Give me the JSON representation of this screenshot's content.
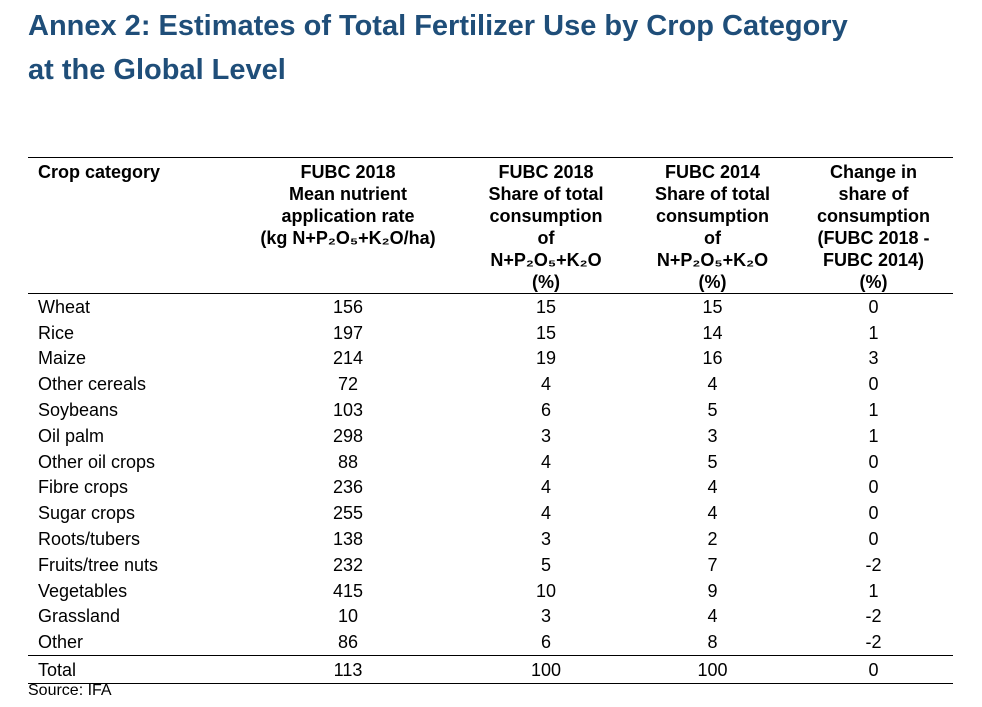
{
  "title": {
    "line1": "Annex 2: Estimates of Total Fertilizer Use by Crop Category",
    "line2": "at the Global Level"
  },
  "header": {
    "crop": "Crop category",
    "col1": [
      "FUBC 2018",
      "Mean nutrient",
      "application rate",
      "(kg N+P₂O₅+K₂O/ha)"
    ],
    "col2": [
      "FUBC 2018",
      "Share of total",
      "consumption",
      "of",
      "N+P₂O₅+K₂O",
      "(%)"
    ],
    "col3": [
      "FUBC 2014",
      "Share of total",
      "consumption",
      "of",
      "N+P₂O₅+K₂O",
      "(%)"
    ],
    "col4": [
      "Change in",
      "share of",
      "consumption",
      "(FUBC 2018 -",
      "FUBC 2014)",
      "(%)"
    ]
  },
  "rows": [
    {
      "crop": "Wheat",
      "rate": "156",
      "share2018": "15",
      "share2014": "15",
      "change": "0"
    },
    {
      "crop": "Rice",
      "rate": "197",
      "share2018": "15",
      "share2014": "14",
      "change": "1"
    },
    {
      "crop": "Maize",
      "rate": "214",
      "share2018": "19",
      "share2014": "16",
      "change": "3"
    },
    {
      "crop": "Other cereals",
      "rate": "72",
      "share2018": "4",
      "share2014": "4",
      "change": "0"
    },
    {
      "crop": "Soybeans",
      "rate": "103",
      "share2018": "6",
      "share2014": "5",
      "change": "1"
    },
    {
      "crop": "Oil palm",
      "rate": "298",
      "share2018": "3",
      "share2014": "3",
      "change": "1"
    },
    {
      "crop": "Other oil crops",
      "rate": "88",
      "share2018": "4",
      "share2014": "5",
      "change": "0"
    },
    {
      "crop": "Fibre crops",
      "rate": "236",
      "share2018": "4",
      "share2014": "4",
      "change": "0"
    },
    {
      "crop": "Sugar crops",
      "rate": "255",
      "share2018": "4",
      "share2014": "4",
      "change": "0"
    },
    {
      "crop": "Roots/tubers",
      "rate": "138",
      "share2018": "3",
      "share2014": "2",
      "change": "0"
    },
    {
      "crop": "Fruits/tree nuts",
      "rate": "232",
      "share2018": "5",
      "share2014": "7",
      "change": "-2"
    },
    {
      "crop": "Vegetables",
      "rate": "415",
      "share2018": "10",
      "share2014": "9",
      "change": "1"
    },
    {
      "crop": "Grassland",
      "rate": "10",
      "share2018": "3",
      "share2014": "4",
      "change": "-2"
    },
    {
      "crop": "Other",
      "rate": "86",
      "share2018": "6",
      "share2014": "8",
      "change": "-2"
    }
  ],
  "total": {
    "crop": "Total",
    "rate": "113",
    "share2018": "100",
    "share2014": "100",
    "change": "0"
  },
  "source": "Source: IFA"
}
